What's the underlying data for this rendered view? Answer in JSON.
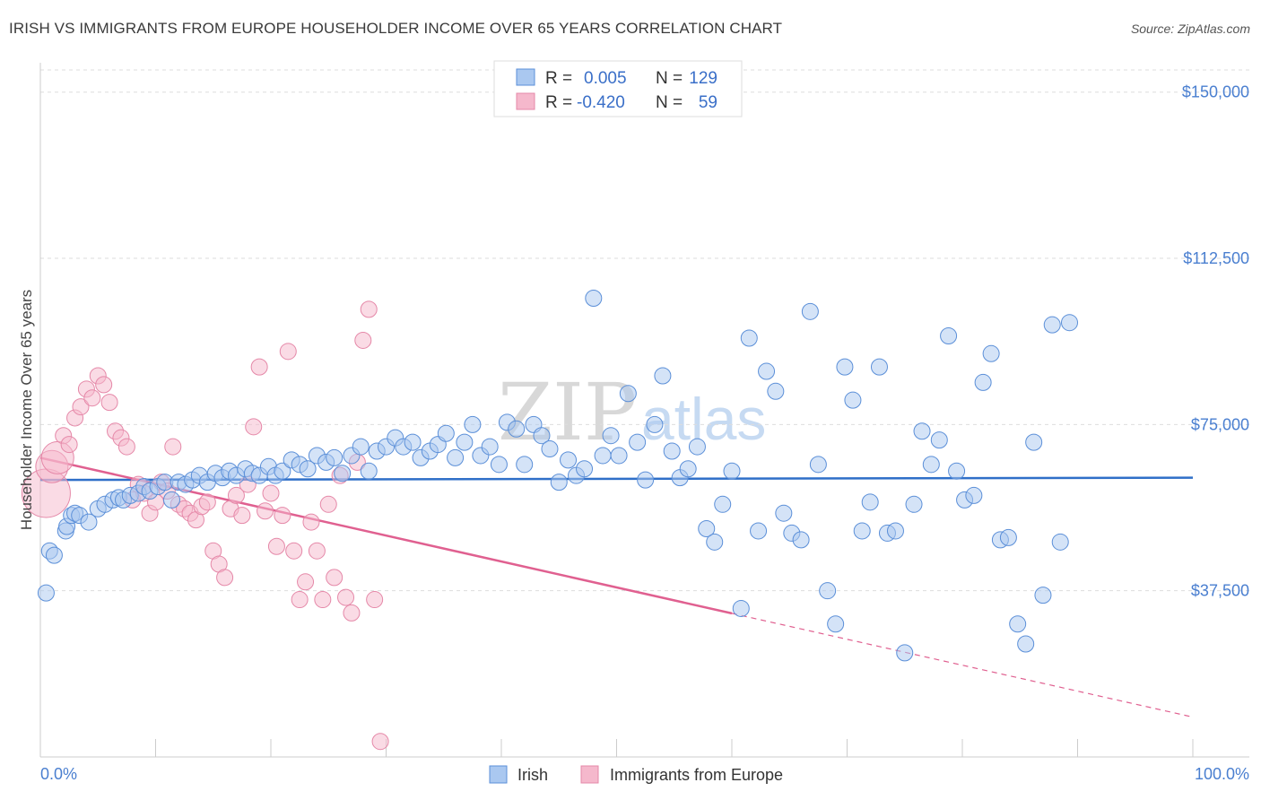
{
  "title": "IRISH VS IMMIGRANTS FROM EUROPE HOUSEHOLDER INCOME OVER 65 YEARS CORRELATION CHART",
  "source": "Source: ZipAtlas.com",
  "watermark": {
    "zip": "ZIP",
    "atlas": "atlas"
  },
  "colors": {
    "irish_fill": "#aac8f0",
    "irish_stroke": "#5b8fd8",
    "irish_line": "#2f6fc8",
    "europe_fill": "#f5b8cc",
    "europe_stroke": "#e588a8",
    "europe_line": "#e06090",
    "tick_text": "#4a7fd0",
    "grid": "#dddddd"
  },
  "legend": {
    "row1": {
      "r_label": "R =",
      "r_value": "0.005",
      "n_label": "N =",
      "n_value": "129"
    },
    "row2": {
      "r_label": "R =",
      "r_value": "-0.420",
      "n_label": "N =",
      "n_value": "59"
    }
  },
  "chart_data": {
    "type": "scatter",
    "title": "IRISH VS IMMIGRANTS FROM EUROPE HOUSEHOLDER INCOME OVER 65 YEARS CORRELATION CHART",
    "xlabel": "",
    "ylabel": "Householder Income Over 65 years",
    "xlim": [
      0,
      100
    ],
    "ylim": [
      0,
      155000
    ],
    "x_tick_labels": [
      "0.0%",
      "100.0%"
    ],
    "y_ticks": [
      37500,
      75000,
      112500,
      150000
    ],
    "y_tick_labels": [
      "$37,500",
      "$75,000",
      "$112,500",
      "$150,000"
    ],
    "series": [
      {
        "name": "Irish",
        "trend": {
          "x": [
            0,
            100
          ],
          "y": [
            62500,
            63000
          ],
          "solid_until": 100
        },
        "points": [
          [
            0.5,
            37000,
            1
          ],
          [
            0.8,
            46500,
            1
          ],
          [
            1.2,
            45500,
            1
          ],
          [
            2.2,
            51000,
            1
          ],
          [
            2.3,
            52000,
            1
          ],
          [
            2.7,
            54500,
            1
          ],
          [
            3.0,
            55000,
            1
          ],
          [
            3.4,
            54500,
            1
          ],
          [
            4.2,
            53000,
            1
          ],
          [
            5.0,
            56000,
            1
          ],
          [
            5.6,
            57000,
            1
          ],
          [
            6.3,
            58000,
            1
          ],
          [
            6.8,
            58500,
            1
          ],
          [
            7.2,
            58000,
            1
          ],
          [
            7.8,
            59000,
            1
          ],
          [
            8.5,
            59500,
            1
          ],
          [
            9.0,
            61000,
            1
          ],
          [
            9.5,
            60000,
            1
          ],
          [
            10.2,
            61000,
            1
          ],
          [
            10.8,
            62000,
            1
          ],
          [
            11.4,
            58000,
            1
          ],
          [
            12.0,
            62000,
            1
          ],
          [
            12.6,
            61500,
            1
          ],
          [
            13.2,
            62500,
            1
          ],
          [
            13.8,
            63500,
            1
          ],
          [
            14.5,
            62000,
            1
          ],
          [
            15.2,
            64000,
            1
          ],
          [
            15.8,
            63000,
            1
          ],
          [
            16.4,
            64500,
            1
          ],
          [
            17.0,
            63500,
            1
          ],
          [
            17.8,
            65000,
            1
          ],
          [
            18.4,
            64000,
            1
          ],
          [
            19.0,
            63500,
            1
          ],
          [
            19.8,
            65500,
            1
          ],
          [
            20.4,
            63500,
            1
          ],
          [
            21.0,
            64500,
            1
          ],
          [
            21.8,
            67000,
            1
          ],
          [
            22.5,
            66000,
            1
          ],
          [
            23.2,
            65000,
            1
          ],
          [
            24.0,
            68000,
            1
          ],
          [
            24.8,
            66500,
            1
          ],
          [
            25.5,
            67500,
            1
          ],
          [
            26.2,
            64000,
            1
          ],
          [
            27.0,
            68000,
            1
          ],
          [
            27.8,
            70000,
            1
          ],
          [
            28.5,
            64500,
            1
          ],
          [
            29.2,
            69000,
            1
          ],
          [
            30.0,
            70000,
            1
          ],
          [
            30.8,
            72000,
            1
          ],
          [
            31.5,
            70000,
            1
          ],
          [
            32.3,
            71000,
            1
          ],
          [
            33.0,
            67500,
            1
          ],
          [
            33.8,
            69000,
            1
          ],
          [
            34.5,
            70500,
            1
          ],
          [
            35.2,
            73000,
            1
          ],
          [
            36.0,
            67500,
            1
          ],
          [
            36.8,
            71000,
            1
          ],
          [
            37.5,
            75000,
            1
          ],
          [
            38.2,
            68000,
            1
          ],
          [
            39.0,
            70000,
            1
          ],
          [
            39.8,
            66000,
            1
          ],
          [
            40.5,
            75500,
            1
          ],
          [
            41.3,
            74000,
            1
          ],
          [
            42.0,
            66000,
            1
          ],
          [
            42.8,
            75000,
            1
          ],
          [
            43.5,
            72500,
            1
          ],
          [
            44.2,
            69500,
            1
          ],
          [
            45.0,
            62000,
            1
          ],
          [
            45.8,
            67000,
            1
          ],
          [
            46.5,
            63500,
            1
          ],
          [
            47.2,
            65000,
            1
          ],
          [
            48.0,
            103500,
            1
          ],
          [
            48.8,
            68000,
            1
          ],
          [
            49.5,
            72500,
            1
          ],
          [
            50.2,
            68000,
            1
          ],
          [
            51.0,
            82000,
            1
          ],
          [
            51.8,
            71000,
            1
          ],
          [
            52.5,
            62500,
            1
          ],
          [
            53.3,
            75000,
            1
          ],
          [
            54.0,
            86000,
            1
          ],
          [
            54.8,
            69000,
            1
          ],
          [
            55.5,
            63000,
            1
          ],
          [
            56.2,
            65000,
            1
          ],
          [
            57.0,
            70000,
            1
          ],
          [
            57.8,
            51500,
            1
          ],
          [
            58.5,
            48500,
            1
          ],
          [
            59.2,
            57000,
            1
          ],
          [
            60.0,
            64500,
            1
          ],
          [
            60.8,
            33500,
            1
          ],
          [
            61.5,
            94500,
            1
          ],
          [
            62.3,
            51000,
            1
          ],
          [
            63.0,
            87000,
            1
          ],
          [
            63.8,
            82500,
            1
          ],
          [
            64.5,
            55000,
            1
          ],
          [
            65.2,
            50500,
            1
          ],
          [
            66.0,
            49000,
            1
          ],
          [
            66.8,
            100500,
            1
          ],
          [
            67.5,
            66000,
            1
          ],
          [
            68.3,
            37500,
            1
          ],
          [
            69.0,
            30000,
            1
          ],
          [
            69.8,
            88000,
            1
          ],
          [
            70.5,
            80500,
            1
          ],
          [
            71.3,
            51000,
            1
          ],
          [
            72.0,
            57500,
            1
          ],
          [
            72.8,
            88000,
            1
          ],
          [
            73.5,
            50500,
            1
          ],
          [
            74.2,
            51000,
            1
          ],
          [
            75.0,
            23500,
            1
          ],
          [
            75.8,
            57000,
            1
          ],
          [
            76.5,
            73500,
            1
          ],
          [
            77.3,
            66000,
            1
          ],
          [
            78.0,
            71500,
            1
          ],
          [
            78.8,
            95000,
            1
          ],
          [
            79.5,
            64500,
            1
          ],
          [
            80.2,
            58000,
            1
          ],
          [
            81.0,
            59000,
            1
          ],
          [
            81.8,
            84500,
            1
          ],
          [
            82.5,
            91000,
            1
          ],
          [
            83.3,
            49000,
            1
          ],
          [
            84.0,
            49500,
            1
          ],
          [
            84.8,
            30000,
            1
          ],
          [
            85.5,
            25500,
            1
          ],
          [
            86.2,
            71000,
            1
          ],
          [
            87.0,
            36500,
            1
          ],
          [
            87.8,
            97500,
            1
          ],
          [
            88.5,
            48500,
            1
          ],
          [
            89.3,
            98000,
            1
          ]
        ]
      },
      {
        "name": "Immigrants from Europe",
        "trend": {
          "x": [
            0,
            100
          ],
          "y": [
            67500,
            9000
          ],
          "solid_until": 60
        },
        "points": [
          [
            0.5,
            59500,
            3
          ],
          [
            1.0,
            65500,
            2
          ],
          [
            1.5,
            67500,
            2
          ],
          [
            2.0,
            72500,
            1
          ],
          [
            2.5,
            70500,
            1
          ],
          [
            3.0,
            76500,
            1
          ],
          [
            3.5,
            79000,
            1
          ],
          [
            4.0,
            83000,
            1
          ],
          [
            4.5,
            81000,
            1
          ],
          [
            5.0,
            86000,
            1
          ],
          [
            5.5,
            84000,
            1
          ],
          [
            6.0,
            80000,
            1
          ],
          [
            6.5,
            73500,
            1
          ],
          [
            7.0,
            72000,
            1
          ],
          [
            7.5,
            70000,
            1
          ],
          [
            8.0,
            58000,
            1
          ],
          [
            8.5,
            61500,
            1
          ],
          [
            9.0,
            59500,
            1
          ],
          [
            9.5,
            55000,
            1
          ],
          [
            10.0,
            57500,
            1
          ],
          [
            10.5,
            62000,
            1
          ],
          [
            11.0,
            60000,
            1
          ],
          [
            11.5,
            70000,
            1
          ],
          [
            12.0,
            57000,
            1
          ],
          [
            12.5,
            56000,
            1
          ],
          [
            13.0,
            55000,
            1
          ],
          [
            13.5,
            53500,
            1
          ],
          [
            14.0,
            56500,
            1
          ],
          [
            14.5,
            57500,
            1
          ],
          [
            15.0,
            46500,
            1
          ],
          [
            15.5,
            43500,
            1
          ],
          [
            16.0,
            40500,
            1
          ],
          [
            16.5,
            56000,
            1
          ],
          [
            17.0,
            59000,
            1
          ],
          [
            17.5,
            54500,
            1
          ],
          [
            18.0,
            61500,
            1
          ],
          [
            18.5,
            74500,
            1
          ],
          [
            19.0,
            88000,
            1
          ],
          [
            19.5,
            55500,
            1
          ],
          [
            20.0,
            59500,
            1
          ],
          [
            20.5,
            47500,
            1
          ],
          [
            21.0,
            54500,
            1
          ],
          [
            21.5,
            91500,
            1
          ],
          [
            22.0,
            46500,
            1
          ],
          [
            22.5,
            35500,
            1
          ],
          [
            23.0,
            39500,
            1
          ],
          [
            23.5,
            53000,
            1
          ],
          [
            24.0,
            46500,
            1
          ],
          [
            24.5,
            35500,
            1
          ],
          [
            25.0,
            57000,
            1
          ],
          [
            25.5,
            40500,
            1
          ],
          [
            26.0,
            63500,
            1
          ],
          [
            26.5,
            36000,
            1
          ],
          [
            27.0,
            32500,
            1
          ],
          [
            27.5,
            66500,
            1
          ],
          [
            28.0,
            94000,
            1
          ],
          [
            28.5,
            101000,
            1
          ],
          [
            29.0,
            35500,
            1
          ],
          [
            29.5,
            3500,
            1
          ]
        ]
      }
    ]
  },
  "bottom_legend": {
    "irish": "Irish",
    "europe": "Immigrants from Europe"
  }
}
